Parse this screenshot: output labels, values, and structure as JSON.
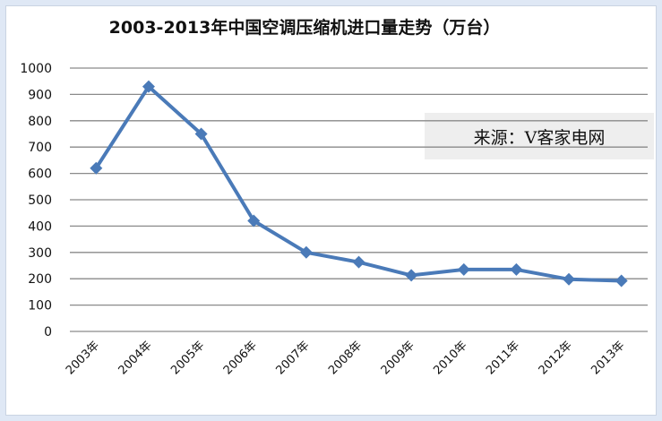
{
  "chart_data": {
    "type": "line",
    "title": "2003-2013年中国空调压缩机进口量走势（万台）",
    "categories": [
      "2003年",
      "2004年",
      "2005年",
      "2006年",
      "2007年",
      "2008年",
      "2009年",
      "2010年",
      "2011年",
      "2012年",
      "2013年"
    ],
    "series": [
      {
        "values": [
          620,
          930,
          750,
          420,
          300,
          263,
          213,
          235,
          235,
          198,
          192
        ]
      }
    ],
    "ylim": [
      0,
      1000
    ],
    "yticks": [
      0,
      100,
      200,
      300,
      400,
      500,
      600,
      700,
      800,
      900,
      1000
    ],
    "grid": true,
    "line_color": "#4a7ab8",
    "grid_color": "#8a8a8a",
    "marker": "diamond"
  },
  "source_label": "来源：V客家电网"
}
